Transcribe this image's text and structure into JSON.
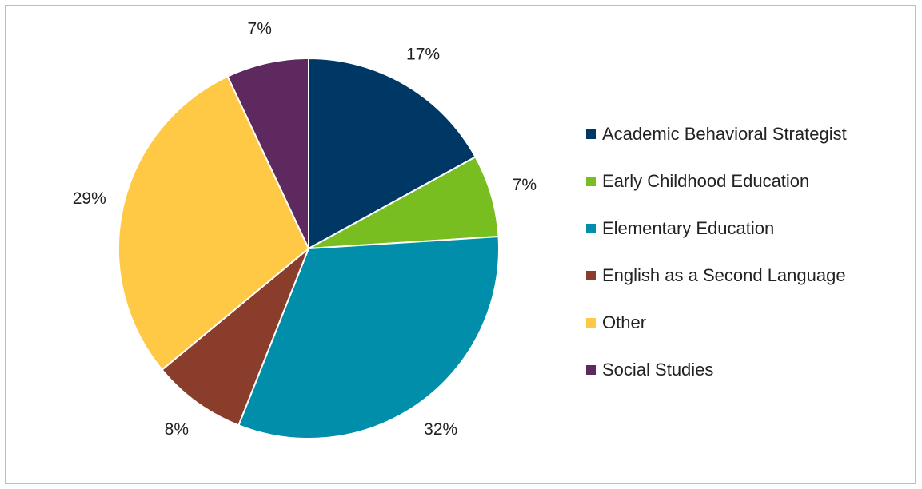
{
  "chart_data": {
    "type": "pie",
    "categories": [
      "Academic Behavioral Strategist",
      "Early Childhood Education",
      "Elementary Education",
      "English as a Second Language",
      "Other",
      "Social Studies"
    ],
    "values": [
      17,
      7,
      32,
      8,
      29,
      7
    ],
    "data_labels": [
      "17%",
      "7%",
      "32%",
      "8%",
      "29%",
      "7%"
    ],
    "colors": [
      "#003865",
      "#78be20",
      "#008eaa",
      "#8b3d2b",
      "#ffc845",
      "#5d295f"
    ],
    "legend_position": "right"
  }
}
